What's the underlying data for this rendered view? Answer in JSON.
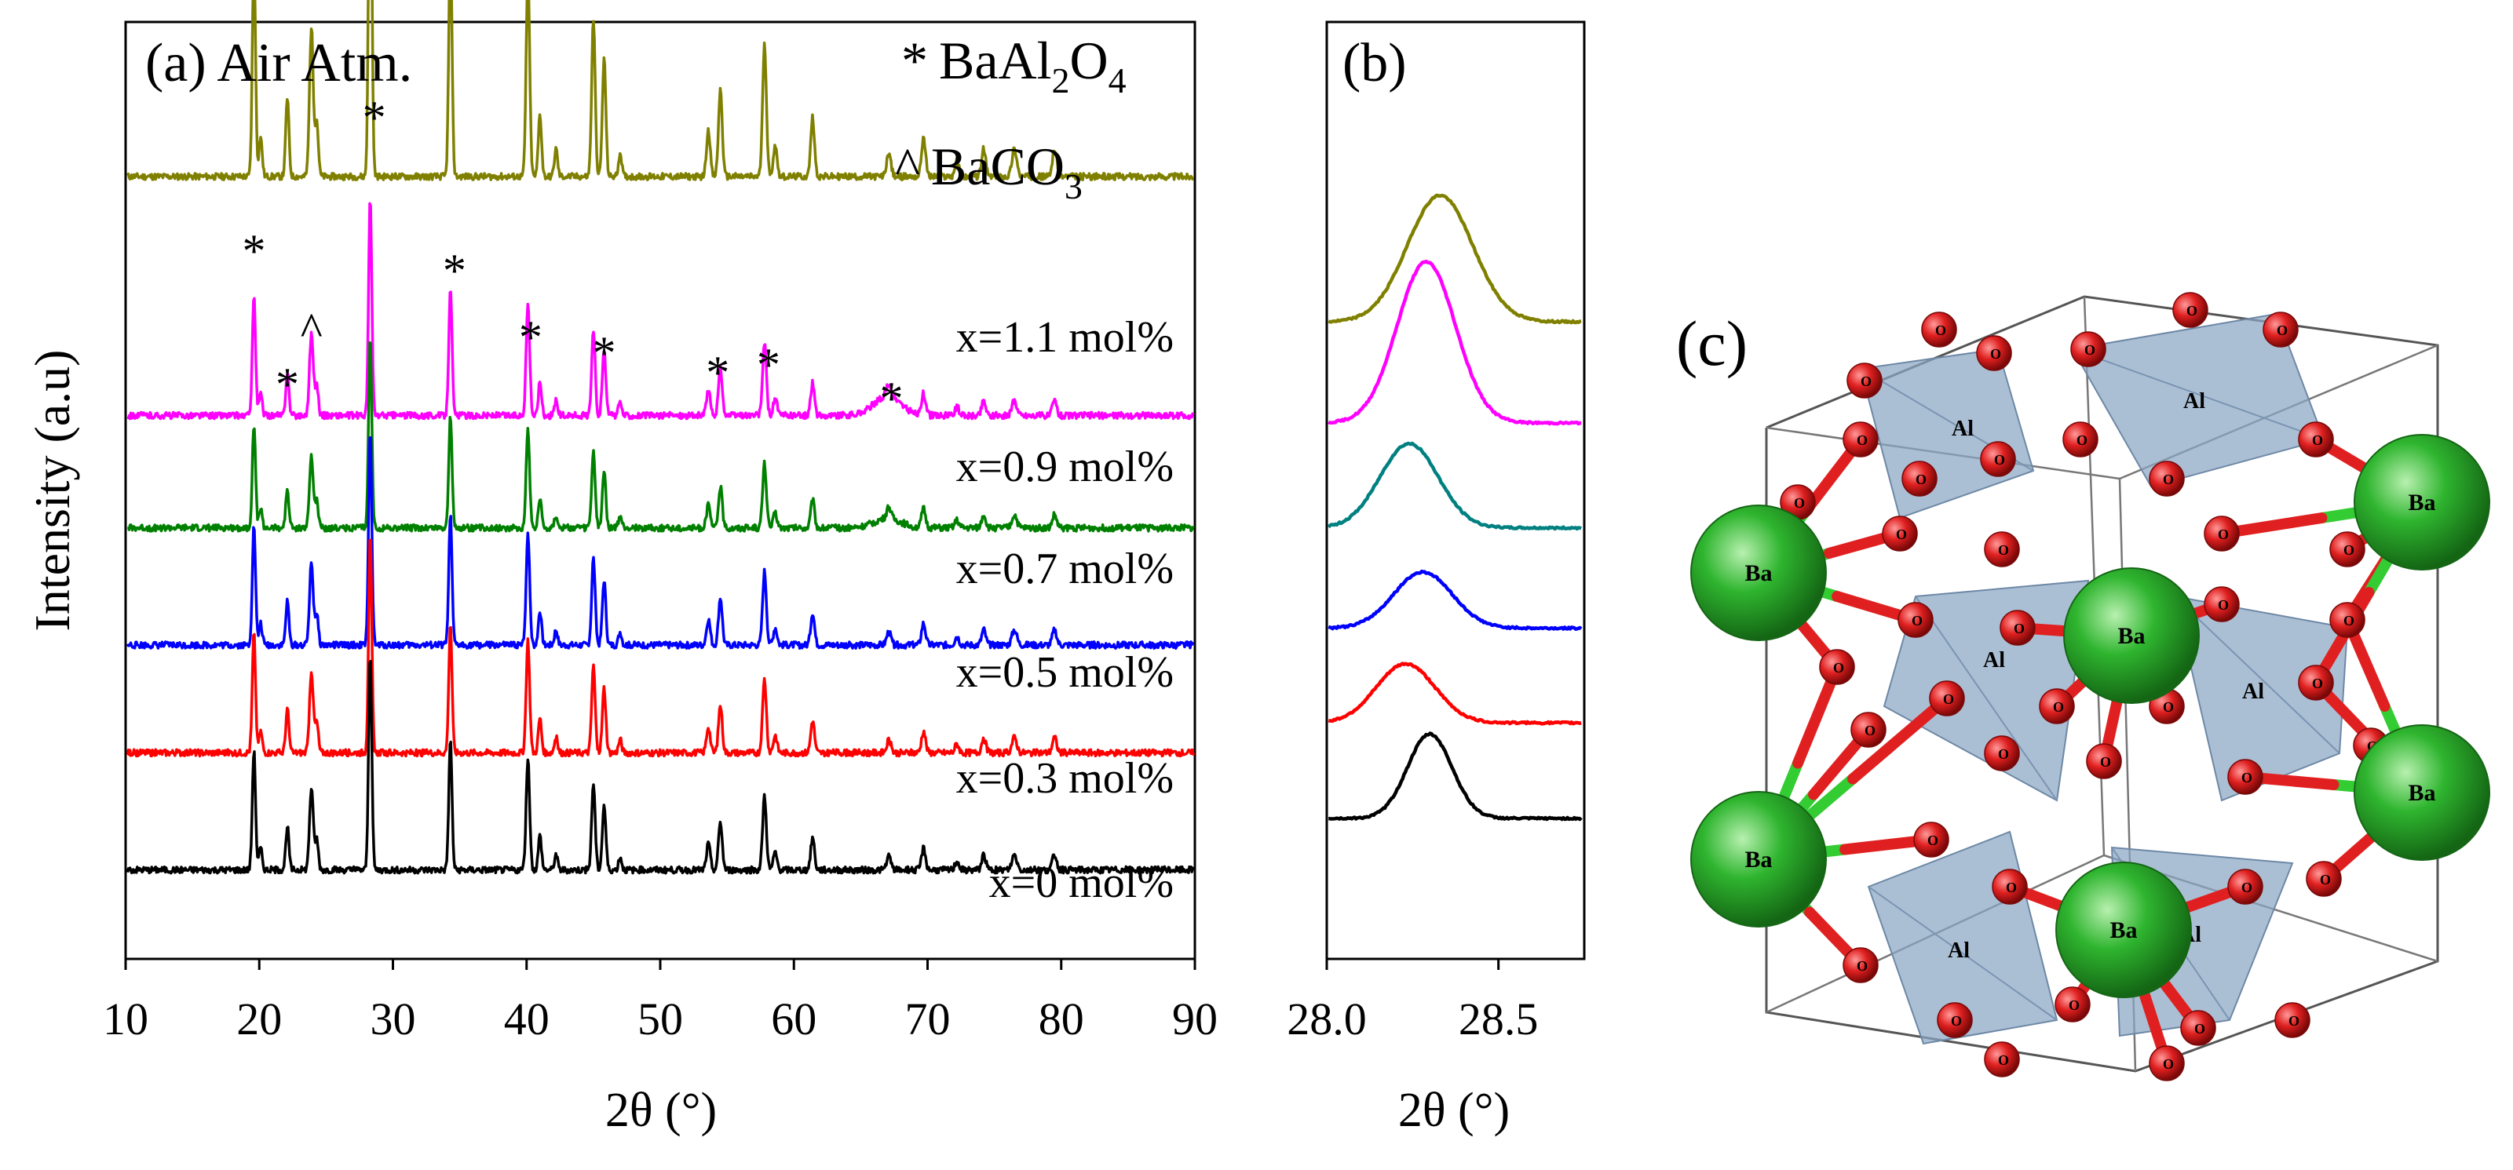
{
  "chart_data": [
    {
      "type": "line",
      "panel_label": "(a) Air Atm.",
      "xlabel": "2θ  (°)",
      "ylabel": "Intensity (a.u)",
      "xlim": [
        10,
        90
      ],
      "xticks": [
        10,
        20,
        30,
        40,
        50,
        60,
        70,
        80,
        90
      ],
      "legend": [
        {
          "symbol": "*",
          "phase": "BaAl",
          "sub1": "2",
          "mid": "O",
          "sub2": "4"
        },
        {
          "symbol": "^",
          "phase": "BaCO",
          "sub1": "3",
          "mid": "",
          "sub2": ""
        }
      ],
      "peaks": [
        {
          "x": 19.6,
          "h": 0.55,
          "w": 0.12
        },
        {
          "x": 20.1,
          "h": 0.1,
          "w": 0.12
        },
        {
          "x": 22.1,
          "h": 0.2,
          "w": 0.12
        },
        {
          "x": 23.9,
          "h": 0.38,
          "w": 0.14
        },
        {
          "x": 24.3,
          "h": 0.14,
          "w": 0.12
        },
        {
          "x": 28.3,
          "h": 1.0,
          "w": 0.12
        },
        {
          "x": 34.3,
          "h": 0.6,
          "w": 0.12
        },
        {
          "x": 40.1,
          "h": 0.52,
          "w": 0.13
        },
        {
          "x": 41.0,
          "h": 0.16,
          "w": 0.12
        },
        {
          "x": 42.2,
          "h": 0.07,
          "w": 0.12
        },
        {
          "x": 45.0,
          "h": 0.4,
          "w": 0.13
        },
        {
          "x": 45.8,
          "h": 0.3,
          "w": 0.13
        },
        {
          "x": 47.0,
          "h": 0.06,
          "w": 0.12
        },
        {
          "x": 53.6,
          "h": 0.12,
          "w": 0.14
        },
        {
          "x": 54.5,
          "h": 0.22,
          "w": 0.14
        },
        {
          "x": 57.8,
          "h": 0.34,
          "w": 0.14
        },
        {
          "x": 58.6,
          "h": 0.08,
          "w": 0.14
        },
        {
          "x": 61.4,
          "h": 0.15,
          "w": 0.14
        },
        {
          "x": 67.1,
          "h": 0.06,
          "w": 0.16
        },
        {
          "x": 69.7,
          "h": 0.1,
          "w": 0.15
        },
        {
          "x": 72.2,
          "h": 0.04,
          "w": 0.15
        },
        {
          "x": 74.2,
          "h": 0.07,
          "w": 0.15
        },
        {
          "x": 76.5,
          "h": 0.07,
          "w": 0.18
        },
        {
          "x": 79.5,
          "h": 0.07,
          "w": 0.16
        }
      ],
      "peak_markers": [
        {
          "x": 19.6,
          "mark": "*"
        },
        {
          "x": 22.1,
          "mark": "*"
        },
        {
          "x": 23.9,
          "mark": "^"
        },
        {
          "x": 28.6,
          "mark": "*"
        },
        {
          "x": 34.6,
          "mark": "*"
        },
        {
          "x": 40.3,
          "mark": "*"
        },
        {
          "x": 45.8,
          "mark": "*"
        },
        {
          "x": 54.3,
          "mark": "*"
        },
        {
          "x": 58.1,
          "mark": "*"
        },
        {
          "x": 67.3,
          "mark": "*"
        }
      ],
      "series": [
        {
          "name": "x=1.1 mol%",
          "color": "#808000",
          "baseline": 0.835,
          "scale": 1.0,
          "bump": 0.0
        },
        {
          "name": "x=0.9 mol%",
          "color": "#ff00ff",
          "baseline": 0.58,
          "scale": 0.55,
          "bump": 0.09
        },
        {
          "name": "x=0.7 mol%",
          "color": "#008000",
          "baseline": 0.46,
          "scale": 0.48,
          "bump": 0.05
        },
        {
          "name": "x=0.5 mol%",
          "color": "#0000ff",
          "baseline": 0.335,
          "scale": 0.55,
          "bump": 0.0
        },
        {
          "name": "x=0.3 mol%",
          "color": "#ff0000",
          "baseline": 0.22,
          "scale": 0.55,
          "bump": 0.0
        },
        {
          "name": "x=0 mol%",
          "color": "#000000",
          "baseline": 0.095,
          "scale": 0.55,
          "bump": 0.0
        }
      ]
    },
    {
      "type": "line",
      "panel_label": "(b)",
      "xlabel": "2θ  (°)",
      "xlim": [
        28.0,
        28.75
      ],
      "xticks": [
        "28.0",
        "28.5"
      ],
      "series": [
        {
          "color": "#808000",
          "center": 28.33,
          "baseline": 0.13,
          "height": 0.135,
          "sigma": 0.095
        },
        {
          "color": "#ff00ff",
          "center": 28.29,
          "baseline": 0.238,
          "height": 0.172,
          "sigma": 0.085
        },
        {
          "color": "#008080",
          "center": 28.24,
          "baseline": 0.35,
          "height": 0.09,
          "sigma": 0.085
        },
        {
          "color": "#0000ff",
          "center": 28.28,
          "baseline": 0.457,
          "height": 0.06,
          "sigma": 0.085
        },
        {
          "color": "#ff0000",
          "center": 28.23,
          "baseline": 0.558,
          "height": 0.063,
          "sigma": 0.085
        },
        {
          "color": "#000000",
          "center": 28.3,
          "baseline": 0.66,
          "height": 0.09,
          "sigma": 0.065
        }
      ]
    }
  ],
  "panel_c": {
    "label": "(c)",
    "atom_ba": "Ba",
    "atom_al": "Al",
    "atom_o": "O",
    "colors": {
      "ba": "#2fb52f",
      "o": "#e02020",
      "al": "#8aa6c4",
      "bond_green": "#33cc33",
      "bond_red": "#e02020"
    }
  }
}
